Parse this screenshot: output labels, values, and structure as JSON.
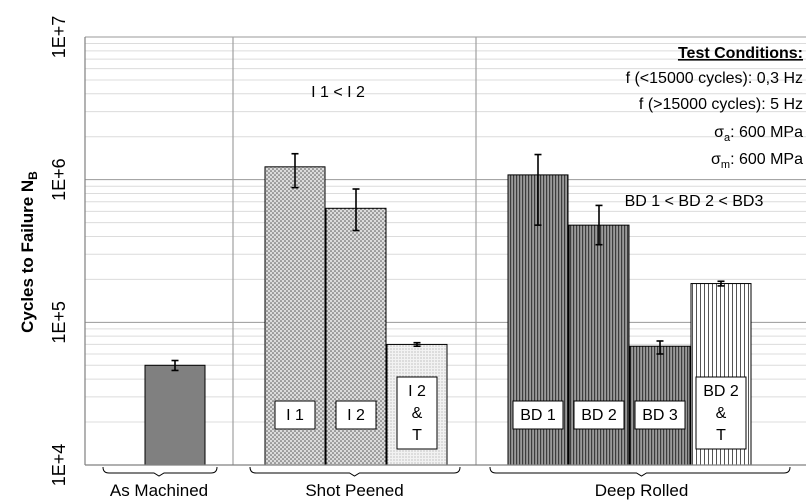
{
  "chart_data": {
    "type": "bar",
    "ylabel": "Cycles to Failure N",
    "ylabel_sub": "B",
    "yscale": "log",
    "ylim": [
      10000,
      10000000
    ],
    "yticks": [
      {
        "value": 10000,
        "label": "1E+4"
      },
      {
        "value": 100000,
        "label": "1E+5"
      },
      {
        "value": 1000000,
        "label": "1E+6"
      },
      {
        "value": 10000000,
        "label": "1E+7"
      }
    ],
    "groups": [
      {
        "label": "As Machined",
        "bar_count": 1
      },
      {
        "label": "Shot Peened",
        "bar_count": 3
      },
      {
        "label": "Deep Rolled",
        "bar_count": 4
      }
    ],
    "bars": [
      {
        "group": 0,
        "value": 50000,
        "err_low": 46000,
        "err_high": 54000,
        "label_lines": [],
        "color": "#808080",
        "pattern": "solid"
      },
      {
        "group": 1,
        "value": 1230000,
        "err_low": 880000,
        "err_high": 1520000,
        "label_lines": [
          "I 1"
        ],
        "color": "#c0c0c0",
        "pattern": "dots"
      },
      {
        "group": 1,
        "value": 630000,
        "err_low": 440000,
        "err_high": 860000,
        "label_lines": [
          "I 2"
        ],
        "color": "#c0c0c0",
        "pattern": "dots"
      },
      {
        "group": 1,
        "value": 70000,
        "err_low": 68000,
        "err_high": 72000,
        "label_lines": [
          "I 2",
          "&",
          "T"
        ],
        "color": "#e6e6e6",
        "pattern": "finedots"
      },
      {
        "group": 2,
        "value": 1080000,
        "err_low": 480000,
        "err_high": 1500000,
        "label_lines": [
          "BD 1"
        ],
        "color": "#808080",
        "pattern": "vlines"
      },
      {
        "group": 2,
        "value": 480000,
        "err_low": 350000,
        "err_high": 660000,
        "label_lines": [
          "BD 2"
        ],
        "color": "#808080",
        "pattern": "vlines"
      },
      {
        "group": 2,
        "value": 68000,
        "err_low": 60000,
        "err_high": 74000,
        "label_lines": [
          "BD 3"
        ],
        "color": "#808080",
        "pattern": "vlines"
      },
      {
        "group": 2,
        "value": 187000,
        "err_low": 180000,
        "err_high": 194000,
        "label_lines": [
          "BD 2",
          "&",
          "T"
        ],
        "color": "#ffffff",
        "pattern": "sparse-vlines"
      }
    ],
    "annotations": [
      {
        "text": "I 1 < I 2"
      },
      {
        "text": "BD 1 < BD 2 < BD3"
      }
    ],
    "test_conditions": {
      "title": "Test Conditions:",
      "line1": "f (<15000 cycles): 0,3 Hz",
      "line2": "f (>15000 cycles): 5 Hz",
      "line3_sym": "σ",
      "line3_sub": "a",
      "line3_rest": ": 600 MPa",
      "line4_sym": "σ",
      "line4_sub": "m",
      "line4_rest": ": 600 MPa"
    },
    "grid": true,
    "legend": "none"
  }
}
